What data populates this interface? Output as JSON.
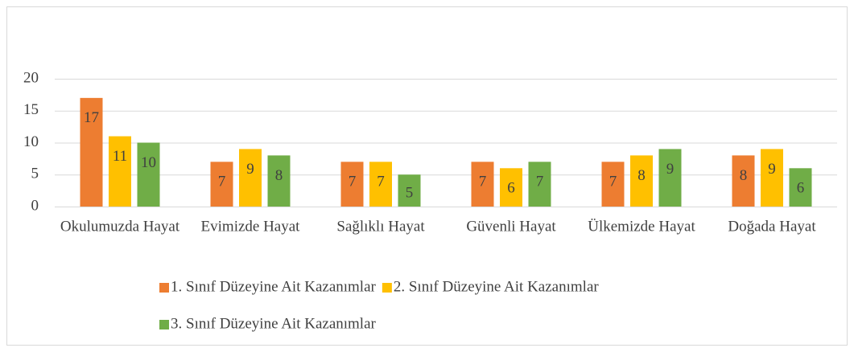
{
  "chart_data": {
    "type": "bar",
    "categories": [
      "Okulumuzda Hayat",
      "Evimizde Hayat",
      "Sağlıklı Hayat",
      "Güvenli Hayat",
      "Ülkemizde Hayat",
      "Doğada Hayat"
    ],
    "series": [
      {
        "name": "1. Sınıf Düzeyine Ait Kazanımlar",
        "color": "#ed7d31",
        "values": [
          17,
          7,
          7,
          7,
          7,
          8
        ]
      },
      {
        "name": "2. Sınıf Düzeyine Ait Kazanımlar",
        "color": "#ffc000",
        "values": [
          11,
          9,
          7,
          6,
          8,
          9
        ]
      },
      {
        "name": "3. Sınıf Düzeyine Ait Kazanımlar",
        "color": "#70ad47",
        "values": [
          10,
          8,
          5,
          7,
          9,
          6
        ]
      }
    ],
    "ylim": [
      0,
      20
    ],
    "yticks": [
      0,
      5,
      10,
      15,
      20
    ],
    "grid": true,
    "data_labels": true,
    "legend": "bottom"
  }
}
